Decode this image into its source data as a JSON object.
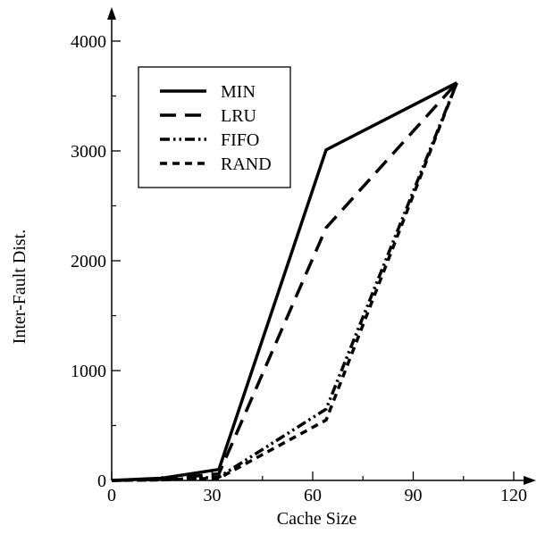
{
  "chart_data": {
    "type": "line",
    "title": "",
    "xlabel": "Cache Size",
    "ylabel": "Inter-Fault Dist.",
    "xlim": [
      0,
      120
    ],
    "ylim": [
      0,
      4000
    ],
    "xticks": [
      0,
      30,
      60,
      90,
      120
    ],
    "yticks": [
      0,
      1000,
      2000,
      3000,
      4000
    ],
    "grid": false,
    "legend_position": "top-left",
    "series": [
      {
        "name": "MIN",
        "style": "solid",
        "x": [
          0,
          15,
          32,
          64,
          103
        ],
        "y": [
          0,
          20,
          100,
          3010,
          3620
        ]
      },
      {
        "name": "LRU",
        "style": "dashed",
        "x": [
          0,
          15,
          32,
          64,
          103
        ],
        "y": [
          0,
          10,
          60,
          2300,
          3620
        ]
      },
      {
        "name": "FIFO",
        "style": "dash-dot-dot",
        "x": [
          0,
          15,
          32,
          64,
          103
        ],
        "y": [
          0,
          5,
          30,
          650,
          3620
        ]
      },
      {
        "name": "RAND",
        "style": "short-dash",
        "x": [
          0,
          15,
          32,
          64,
          103
        ],
        "y": [
          0,
          5,
          20,
          550,
          3620
        ]
      }
    ]
  }
}
